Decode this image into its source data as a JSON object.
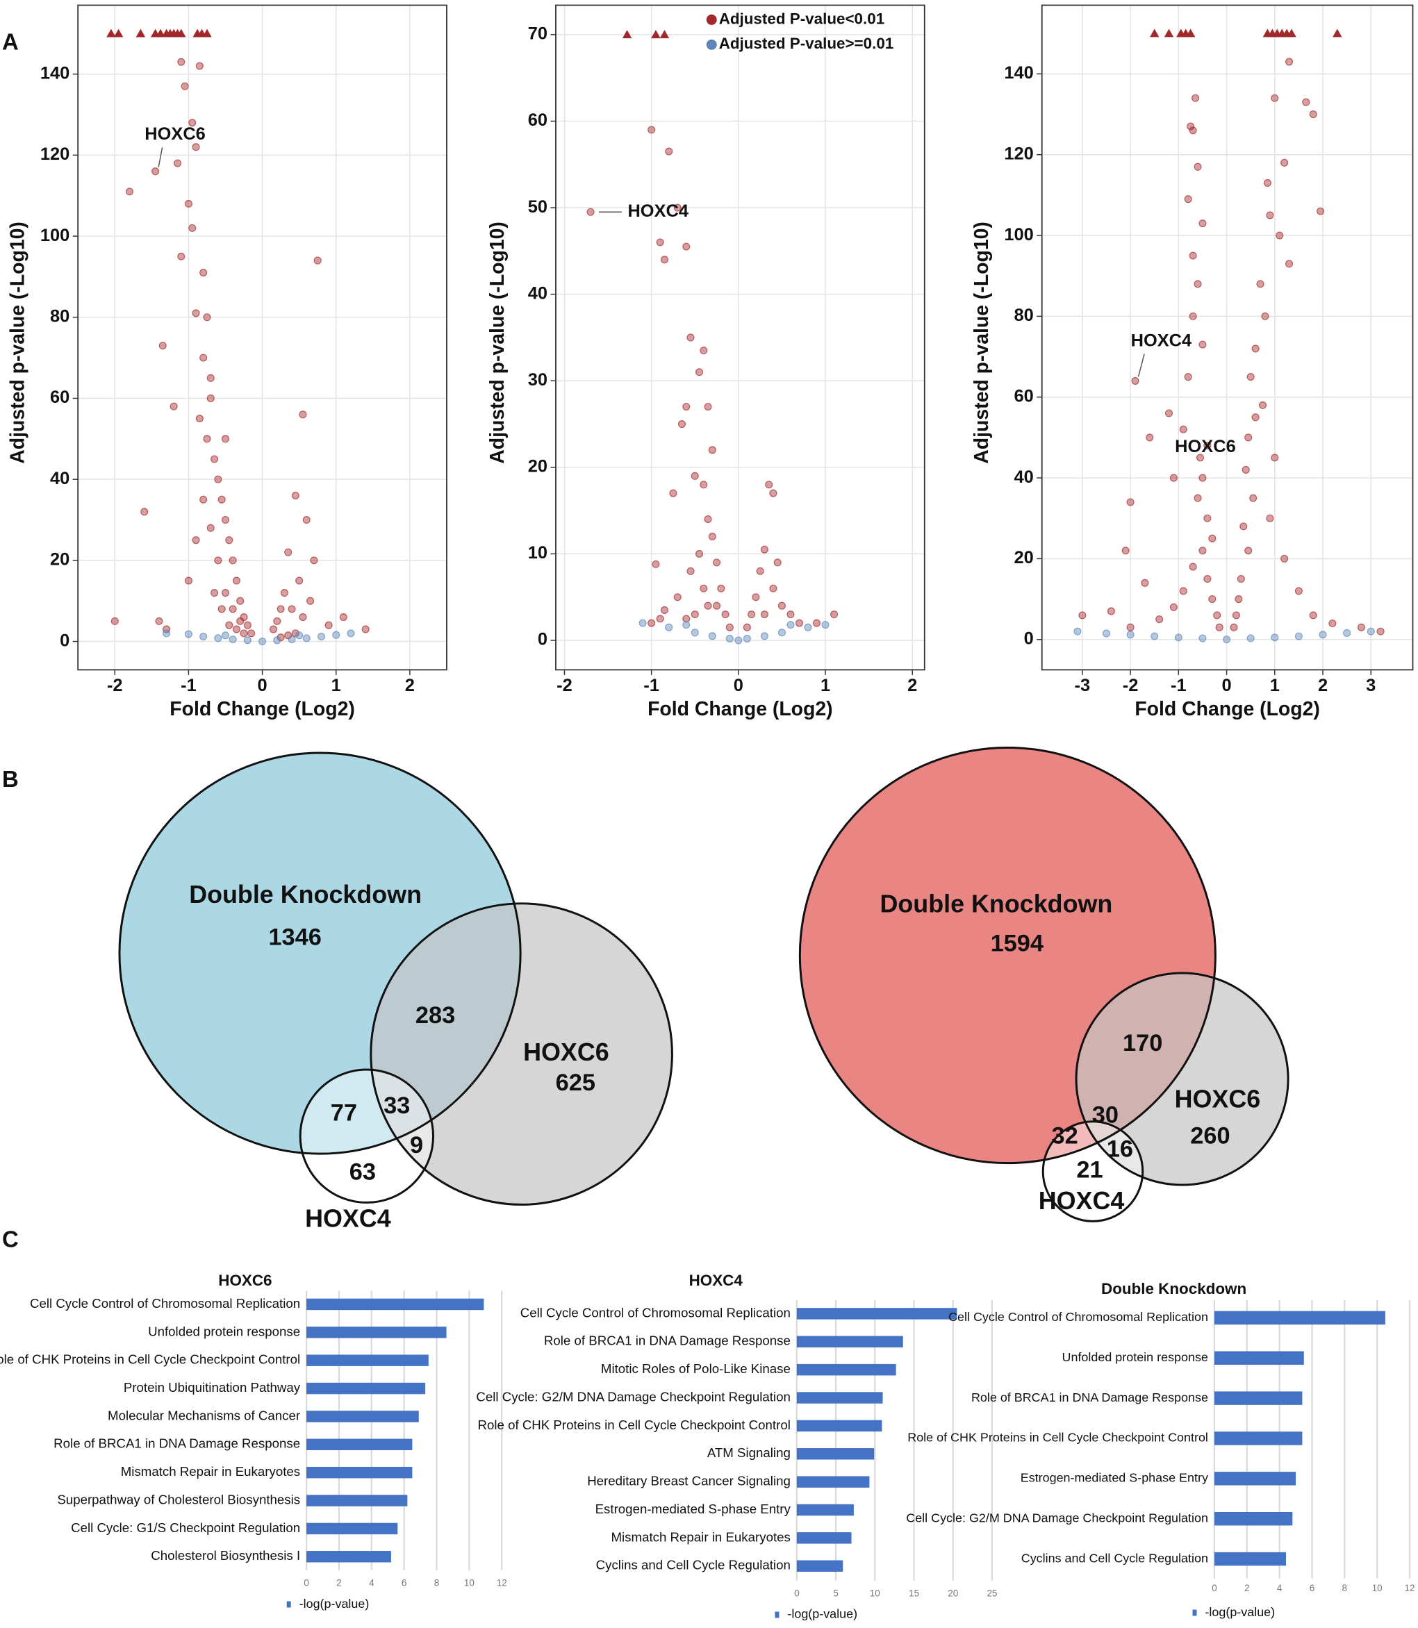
{
  "panel_labels": [
    "A",
    "B",
    "C"
  ],
  "chart_data": [
    {
      "type": "scatter",
      "xlabel": "Fold Change (Log2)",
      "ylabel": "Adjusted p-value (-Log10)",
      "xlim": [
        -2.5,
        2.5
      ],
      "ylim": [
        -7,
        157
      ],
      "xticks": [
        -2,
        -1,
        0,
        1,
        2
      ],
      "yticks": [
        0,
        20,
        40,
        60,
        80,
        100,
        120,
        140
      ],
      "grid": true,
      "series": [
        {
          "name": "Adjusted P-value<0.01",
          "color": "#a3282b",
          "x": [
            -1.8,
            -1.45,
            -1.1,
            -1.05,
            -0.95,
            -0.9,
            -1.0,
            -0.85,
            -1.1,
            -0.95,
            -0.8,
            -1.15,
            -0.9,
            -0.75,
            -0.8,
            -1.35,
            -1.2,
            -0.7,
            -0.6,
            -0.75,
            -0.65,
            -0.55,
            -0.5,
            -0.45,
            -0.4,
            -0.35,
            -0.3,
            -0.25,
            -0.2,
            -0.15,
            -0.6,
            -0.5,
            -0.4,
            -0.3,
            -0.7,
            -0.8,
            -0.9,
            -1.0,
            -1.6,
            -1.4,
            -2.0,
            -1.3,
            -0.55,
            -0.45,
            -0.35,
            -0.25,
            -0.65,
            0.75,
            0.55,
            0.45,
            0.6,
            0.7,
            0.35,
            0.5,
            0.3,
            0.25,
            0.2,
            0.15,
            0.4,
            0.55,
            0.65,
            0.9,
            1.1,
            1.4,
            0.45,
            0.35,
            0.25,
            -0.5,
            -0.7,
            -0.85
          ],
          "values": [
            111,
            116,
            143,
            137,
            128,
            122,
            108,
            142,
            95,
            102,
            91,
            118,
            81,
            80,
            70,
            73,
            58,
            65,
            40,
            50,
            45,
            35,
            30,
            25,
            20,
            15,
            10,
            6,
            4,
            2,
            20,
            12,
            8,
            5,
            28,
            35,
            25,
            15,
            32,
            5,
            5,
            3,
            8,
            4,
            3,
            2,
            12,
            94,
            56,
            36,
            30,
            20,
            22,
            15,
            12,
            8,
            5,
            3,
            8,
            6,
            10,
            4,
            6,
            3,
            2,
            1.5,
            1,
            50,
            60,
            55
          ]
        },
        {
          "name": "Adjusted P-value>=0.01",
          "color": "#5b84b8",
          "x": [
            -1.3,
            -1.0,
            -0.8,
            -0.6,
            -0.4,
            -0.2,
            0,
            0.2,
            0.4,
            0.6,
            0.8,
            1.0,
            1.2,
            -0.5,
            0.5
          ],
          "values": [
            2,
            1.8,
            1.2,
            0.8,
            0.5,
            0.3,
            0,
            0.3,
            0.5,
            0.8,
            1.2,
            1.6,
            2,
            1.5,
            1.5
          ]
        },
        {
          "color": "#a3282b",
          "marker": "triangle",
          "x": [
            -2.05,
            -1.95,
            -1.65,
            -1.45,
            -1.38,
            -1.3,
            -1.25,
            -1.2,
            -1.15,
            -1.1,
            -0.88,
            -0.82,
            -0.75
          ],
          "values": [
            150,
            150,
            150,
            150,
            150,
            150,
            150,
            150,
            150,
            150,
            150,
            150,
            150
          ]
        }
      ],
      "annotations": [
        {
          "text": "HOXC6",
          "x": -1.45,
          "y": 116
        }
      ]
    },
    {
      "type": "scatter",
      "xlabel": "Fold Change (Log2)",
      "ylabel": "Adjusted p-value (-Log10)",
      "xlim": [
        -2.1,
        2.14
      ],
      "ylim": [
        -3.4,
        73.4
      ],
      "xticks": [
        -2,
        -1,
        0,
        1,
        2
      ],
      "yticks": [
        0,
        10,
        20,
        30,
        40,
        50,
        60,
        70
      ],
      "grid": true,
      "legend": "top-right",
      "series": [
        {
          "name": "Adjusted P-value<0.01",
          "color": "#a3282b",
          "x": [
            -1.7,
            -1.0,
            -0.8,
            -0.7,
            -0.9,
            -0.85,
            -0.6,
            -0.55,
            -0.4,
            -0.45,
            -0.6,
            -0.35,
            -0.3,
            -0.65,
            -0.5,
            -0.75,
            -0.4,
            -0.35,
            -0.3,
            -0.25,
            -0.2,
            -0.15,
            -0.1,
            -0.45,
            -0.55,
            -0.4,
            -0.35,
            -0.5,
            -0.7,
            -0.9,
            -0.95,
            -1.0,
            -0.85,
            -0.6,
            0.35,
            0.4,
            0.3,
            0.25,
            0.2,
            0.15,
            0.1,
            0.4,
            0.5,
            0.6,
            0.9,
            1.1,
            0.7,
            0.3,
            0.45,
            -0.25
          ],
          "values": [
            49.5,
            59,
            56.5,
            50,
            46,
            44,
            45.5,
            35,
            33.5,
            31,
            27,
            27,
            22,
            25,
            19,
            17,
            18,
            14,
            12,
            9,
            6,
            3,
            1.5,
            10,
            8,
            6,
            4,
            3,
            5,
            2.5,
            8.8,
            2,
            3.5,
            2.5,
            18,
            17,
            10.5,
            8,
            5,
            3,
            1.5,
            6,
            4,
            3,
            2,
            3,
            2,
            3,
            9,
            4
          ]
        },
        {
          "name": "Adjusted P-value>=0.01",
          "color": "#5b84b8",
          "x": [
            -1.1,
            -0.8,
            -0.5,
            -0.3,
            -0.1,
            0,
            0.1,
            0.3,
            0.5,
            0.8,
            1.0,
            -0.6,
            0.6
          ],
          "values": [
            2,
            1.5,
            0.9,
            0.5,
            0.2,
            0,
            0.2,
            0.5,
            0.9,
            1.5,
            1.8,
            1.8,
            1.8
          ]
        },
        {
          "color": "#a3282b",
          "marker": "triangle",
          "x": [
            -1.28,
            -0.95,
            -0.85
          ],
          "values": [
            70,
            70,
            70
          ]
        }
      ],
      "annotations": [
        {
          "text": "HOXC4",
          "x": -1.7,
          "y": 49.5
        }
      ]
    },
    {
      "type": "scatter",
      "xlabel": "Fold Change (Log2)",
      "ylabel": "Adjusted p-value (-Log10)",
      "xlim": [
        -3.84,
        3.87
      ],
      "ylim": [
        -7.5,
        157
      ],
      "xticks": [
        -3,
        -2,
        -1,
        0,
        1,
        2,
        3
      ],
      "yticks": [
        0,
        20,
        40,
        60,
        80,
        100,
        120,
        140
      ],
      "grid": true,
      "series": [
        {
          "name": "Adjusted P-value<0.01",
          "color": "#a3282b",
          "x": [
            -1.9,
            -0.55,
            -0.65,
            -0.75,
            -0.7,
            -0.6,
            -0.8,
            -0.5,
            -0.7,
            -0.6,
            -0.7,
            -0.5,
            -1.6,
            -1.2,
            -0.9,
            -0.5,
            -0.6,
            -0.4,
            -0.3,
            -0.5,
            -0.4,
            -0.3,
            -0.2,
            -0.15,
            -0.7,
            -0.9,
            -1.1,
            -1.4,
            -2.0,
            -2.1,
            -2.4,
            -3.0,
            -2.0,
            -1.7,
            1.8,
            1.95,
            1.3,
            1.65,
            1.0,
            1.2,
            0.85,
            0.9,
            1.1,
            1.3,
            0.7,
            0.8,
            0.6,
            0.5,
            0.75,
            0.45,
            0.4,
            0.55,
            0.35,
            0.45,
            0.3,
            0.25,
            0.2,
            0.15,
            0.9,
            1.2,
            1.5,
            1.8,
            2.2,
            2.8,
            3.2,
            1.0,
            -0.8,
            -1.1,
            0.6,
            -0.4
          ],
          "values": [
            64,
            45,
            134,
            127,
            126,
            117,
            109,
            103,
            95,
            88,
            80,
            73,
            50,
            56,
            52,
            40,
            35,
            30,
            25,
            22,
            15,
            10,
            6,
            3,
            18,
            12,
            8,
            5,
            3,
            22,
            7,
            6,
            34,
            14,
            130,
            106,
            143,
            133,
            134,
            118,
            113,
            105,
            100,
            93,
            88,
            80,
            72,
            65,
            58,
            50,
            42,
            35,
            28,
            22,
            15,
            10,
            6,
            3,
            30,
            20,
            12,
            6,
            4,
            3,
            2,
            45,
            65,
            40,
            55,
            48
          ]
        },
        {
          "name": "Adjusted P-value>=0.01",
          "color": "#5b84b8",
          "x": [
            -3.1,
            -2.5,
            -2,
            -1.5,
            -1,
            -0.5,
            0,
            0.5,
            1,
            1.5,
            2,
            2.5,
            3.0
          ],
          "values": [
            2,
            1.5,
            1.2,
            0.8,
            0.5,
            0.3,
            0,
            0.3,
            0.5,
            0.8,
            1.2,
            1.6,
            2
          ]
        },
        {
          "color": "#a3282b",
          "marker": "triangle",
          "x": [
            -1.5,
            -1.2,
            -0.95,
            -0.85,
            -0.75,
            0.85,
            0.95,
            1.05,
            1.15,
            1.25,
            1.35,
            2.3
          ],
          "values": [
            150,
            150,
            150,
            150,
            150,
            150,
            150,
            150,
            150,
            150,
            150,
            150
          ]
        }
      ],
      "annotations": [
        {
          "text": "HOXC4",
          "x": -1.9,
          "y": 64
        },
        {
          "text": "HOXC6",
          "x": -0.55,
          "y": 45
        }
      ]
    },
    {
      "type": "venn",
      "sets": [
        {
          "name": "Double Knockdown",
          "color": "#acd8e6"
        },
        {
          "name": "HOXC6",
          "color": "#c4c4c4"
        },
        {
          "name": "HOXC4",
          "color": "#ffffff"
        }
      ],
      "regions": [
        {
          "sets": [
            0
          ],
          "value": 1346
        },
        {
          "sets": [
            0,
            1
          ],
          "value": 283
        },
        {
          "sets": [
            1
          ],
          "value": 625
        },
        {
          "sets": [
            0,
            2
          ],
          "value": 77
        },
        {
          "sets": [
            0,
            1,
            2
          ],
          "value": 33
        },
        {
          "sets": [
            1,
            2
          ],
          "value": 9
        },
        {
          "sets": [
            2
          ],
          "value": 63
        }
      ]
    },
    {
      "type": "venn",
      "sets": [
        {
          "name": "Double Knockdown",
          "color": "#e98582"
        },
        {
          "name": "HOXC6",
          "color": "#c4c4c4"
        },
        {
          "name": "HOXC4",
          "color": "#ffffff"
        }
      ],
      "regions": [
        {
          "sets": [
            0
          ],
          "value": 1594
        },
        {
          "sets": [
            0,
            1
          ],
          "value": 170
        },
        {
          "sets": [
            1
          ],
          "value": 260
        },
        {
          "sets": [
            0,
            2
          ],
          "value": 32
        },
        {
          "sets": [
            0,
            1,
            2
          ],
          "value": 30
        },
        {
          "sets": [
            1,
            2
          ],
          "value": 16
        },
        {
          "sets": [
            2
          ],
          "value": 21
        }
      ]
    },
    {
      "type": "bar",
      "orientation": "horizontal",
      "title": "HOXC6",
      "categories": [
        "Cell Cycle Control of Chromosomal Replication",
        "Unfolded protein response",
        "Role of CHK Proteins in Cell Cycle Checkpoint Control",
        "Protein Ubiquitination Pathway",
        "Molecular Mechanisms of Cancer",
        "Role of BRCA1 in DNA Damage Response",
        "Mismatch Repair in Eukaryotes",
        "Superpathway of Cholesterol Biosynthesis",
        "Cell Cycle: G1/S Checkpoint Regulation",
        "Cholesterol Biosynthesis I"
      ],
      "series": [
        {
          "name": "-log(p-value)",
          "color": "#4472c4",
          "values": [
            10.9,
            8.6,
            7.5,
            7.3,
            6.9,
            6.5,
            6.5,
            6.2,
            5.6,
            5.2
          ]
        }
      ],
      "xlim": [
        0,
        12
      ],
      "xticks": [
        0,
        2,
        4,
        6,
        8,
        10,
        12
      ],
      "grid": true
    },
    {
      "type": "bar",
      "orientation": "horizontal",
      "title": "HOXC4",
      "categories": [
        "Cell Cycle Control of Chromosomal Replication",
        "Role of BRCA1 in DNA Damage Response",
        "Mitotic Roles of Polo-Like Kinase",
        "Cell Cycle: G2/M DNA Damage Checkpoint Regulation",
        "Role of CHK Proteins in Cell Cycle Checkpoint Control",
        "ATM Signaling",
        "Hereditary Breast Cancer Signaling",
        "Estrogen-mediated S-phase Entry",
        "Mismatch Repair in Eukaryotes",
        "Cyclins and Cell Cycle Regulation"
      ],
      "series": [
        {
          "name": "-log(p-value)",
          "color": "#4472c4",
          "values": [
            20.5,
            13.6,
            12.7,
            11.0,
            10.9,
            9.9,
            9.3,
            7.3,
            7.0,
            5.9
          ]
        }
      ],
      "xlim": [
        0,
        25
      ],
      "xticks": [
        0,
        5,
        10,
        15,
        20,
        25
      ],
      "grid": true
    },
    {
      "type": "bar",
      "orientation": "horizontal",
      "title": "Double Knockdown",
      "categories": [
        "Cell Cycle Control of Chromosomal Replication",
        "Unfolded protein response",
        "Role of BRCA1 in DNA Damage Response",
        "Role of CHK Proteins in Cell Cycle Checkpoint Control",
        "Estrogen-mediated S-phase Entry",
        "Cell Cycle: G2/M DNA Damage Checkpoint Regulation",
        "Cyclins and Cell Cycle Regulation"
      ],
      "series": [
        {
          "name": "-log(p-value)",
          "color": "#4472c4",
          "values": [
            10.5,
            5.5,
            5.4,
            5.4,
            5.0,
            4.8,
            4.4
          ]
        }
      ],
      "xlim": [
        0,
        12
      ],
      "xticks": [
        0,
        2,
        4,
        6,
        8,
        10,
        12
      ],
      "grid": true
    }
  ]
}
